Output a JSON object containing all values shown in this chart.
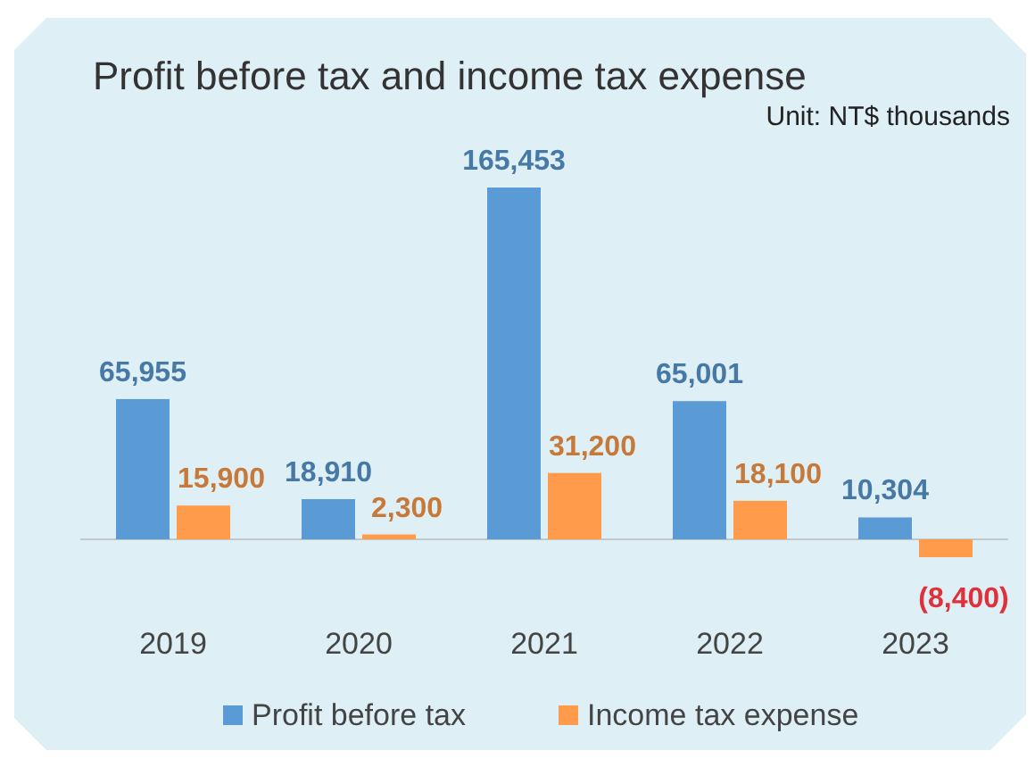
{
  "chart_data": {
    "type": "bar",
    "title": "Profit before tax and income tax expense",
    "annotations": [
      "Unit: NT$ thousands"
    ],
    "categories": [
      "2019",
      "2020",
      "2021",
      "2022",
      "2023"
    ],
    "series": [
      {
        "name": "Profit before tax",
        "color": "#5b9bd5",
        "values": [
          65955,
          18910,
          165453,
          65001,
          10304
        ],
        "value_labels": [
          "65,955",
          "18,910",
          "165,453",
          "65,001",
          "10,304"
        ]
      },
      {
        "name": "Income tax expense",
        "color": "#ff9b4a",
        "values": [
          15900,
          2300,
          31200,
          18100,
          -8400
        ],
        "value_labels": [
          "15,900",
          "2,300",
          "31,200",
          "18,100",
          "(8,400)"
        ]
      }
    ],
    "legend": "bottom"
  }
}
